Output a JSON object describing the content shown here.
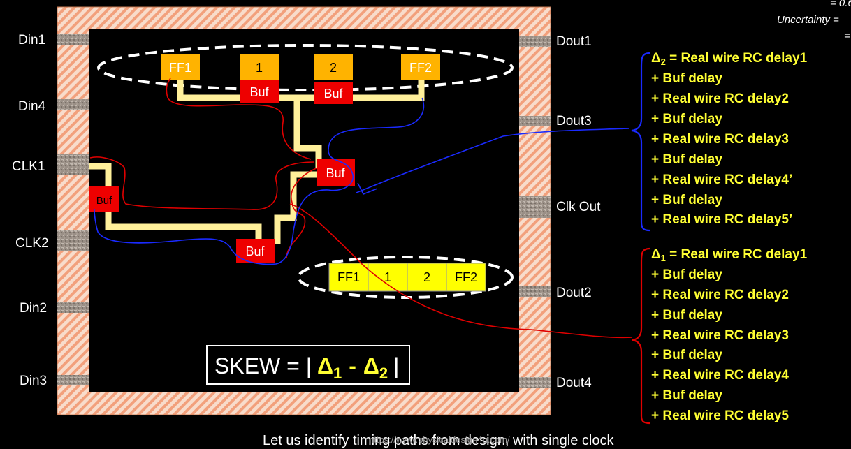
{
  "corner": {
    "line1": "= 0.6",
    "line2": "Uncertainty =",
    "line3": "="
  },
  "pins_left": [
    "Din1",
    "Din4",
    "CLK1",
    "CLK2",
    "Din2",
    "Din3"
  ],
  "pins_right": [
    "Dout1",
    "Dout3",
    "Clk Out",
    "Dout2",
    "Dout4"
  ],
  "top_row": {
    "cells": [
      "FF1",
      "1",
      "2",
      "FF2"
    ],
    "buf_label": "Buf"
  },
  "bottom_row": {
    "cells": [
      "FF1",
      "1",
      "2",
      "FF2"
    ]
  },
  "clock_buffers": [
    "Buf",
    "Buf",
    "Buf"
  ],
  "skew": {
    "prefix": "SKEW = |",
    "d1": "Δ",
    "s1": "1",
    "minus": "-",
    "d2": "Δ",
    "s2": "2",
    "suffix": "|"
  },
  "delta2": {
    "symbol": "Δ",
    "sub": "2",
    "lines": [
      "= Real wire RC delay1",
      "+ Buf delay",
      "+ Real wire RC delay2",
      "+ Buf delay",
      "+ Real wire RC delay3",
      "+ Buf delay",
      "+ Real wire RC delay4’",
      "+ Buf delay",
      "+ Real wire RC delay5’"
    ]
  },
  "delta1": {
    "symbol": "Δ",
    "sub": "1",
    "lines": [
      "= Real wire RC delay1",
      "+ Buf delay",
      "+ Real wire RC delay2",
      "+ Buf delay",
      "+ Real wire RC delay3",
      "+ Buf delay",
      "+ Real wire RC delay4",
      "+ Buf delay",
      "+ Real wire RC delay5"
    ]
  },
  "footer": "Let us identify timing paths from design, with single clock",
  "watermark": "https://www.physicaldesign4u.com/",
  "colors": {
    "frame": "#f4a882",
    "flop_orange": "#ffb300",
    "flop_yellow": "#ffff00",
    "buffer_red": "#ee0000",
    "clock_tree": "#fff09a",
    "eq_text": "#ffff33",
    "route_red": "#e00000",
    "route_blue": "#1a2aff"
  }
}
